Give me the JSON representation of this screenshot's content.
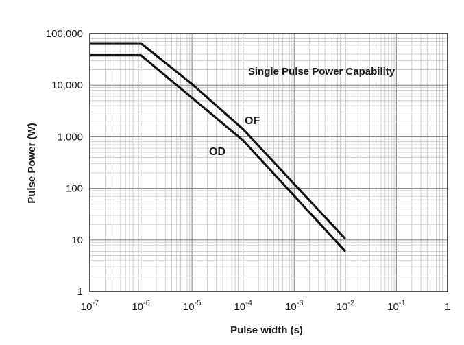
{
  "chart_data": {
    "type": "line",
    "title": "Single Pulse Power Capability",
    "xlabel": "Pulse width (s)",
    "ylabel": "Pulse Power (W)",
    "x_scale": "log",
    "y_scale": "log",
    "xlim": [
      1e-07,
      1
    ],
    "ylim": [
      1,
      100000
    ],
    "x_ticks": [
      {
        "value": 1e-07,
        "base": "10",
        "exp": "-7"
      },
      {
        "value": 1e-06,
        "base": "10",
        "exp": "-6"
      },
      {
        "value": 1e-05,
        "base": "10",
        "exp": "-5"
      },
      {
        "value": 0.0001,
        "base": "10",
        "exp": "-4"
      },
      {
        "value": 0.001,
        "base": "10",
        "exp": "-3"
      },
      {
        "value": 0.01,
        "base": "10",
        "exp": "-2"
      },
      {
        "value": 0.1,
        "base": "10",
        "exp": "-1"
      },
      {
        "value": 1,
        "base": "1",
        "exp": ""
      }
    ],
    "y_ticks": [
      {
        "value": 100000,
        "label": "100,000"
      },
      {
        "value": 10000,
        "label": "10,000"
      },
      {
        "value": 1000,
        "label": "1,000"
      },
      {
        "value": 100,
        "label": "100"
      },
      {
        "value": 10,
        "label": "10"
      },
      {
        "value": 1,
        "label": "1"
      }
    ],
    "grid": true,
    "series": [
      {
        "name": "OF",
        "color": "#111111",
        "points": [
          [
            1e-07,
            65000
          ],
          [
            1e-06,
            65000
          ],
          [
            1e-05,
            10500
          ],
          [
            0.0001,
            1400
          ],
          [
            0.01,
            10.5
          ]
        ]
      },
      {
        "name": "OD",
        "color": "#111111",
        "points": [
          [
            1e-07,
            38000
          ],
          [
            1e-06,
            38000
          ],
          [
            0.0001,
            850
          ],
          [
            0.01,
            6
          ]
        ]
      }
    ]
  }
}
